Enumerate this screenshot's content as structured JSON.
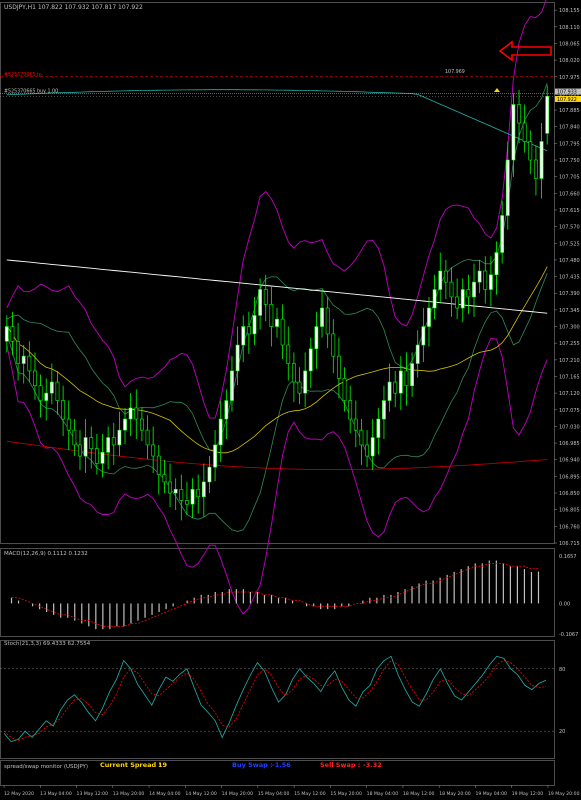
{
  "window": {
    "symbol_caption": "USDJPY,H1  107.822 107.932 107.817 107.922"
  },
  "colors": {
    "background": "#000000",
    "candle_up": "#00ff00",
    "candle_up_body": "#ffffff",
    "candle_down": "#00ff00",
    "candle_down_body": "#000000",
    "bollinger_outer": "#c000c0",
    "bollinger_inner": "#2e8b57",
    "ma_slow": "#ffffff",
    "ma_red": "#cc0000",
    "ma_yellow": "#d4c000",
    "ma_cyan": "#20b2aa",
    "macd_bars": "#c0c0c0",
    "macd_signal": "#ff0000",
    "stoch_main": "#20b2aa",
    "stoch_signal": "#ff0000",
    "arrow": "#ff0000",
    "tp_line": "#ff0000",
    "price_line": "#c0c0c0",
    "spread_label": "#ffd700",
    "buy_swap_label": "#1e40ff",
    "sell_swap_label": "#ff2020"
  },
  "main_panel": {
    "order_labels": {
      "tp": "#525370665 tp",
      "buy": "#525370665 buy 1.00"
    },
    "high_annotation": "107.969",
    "price_labels": {
      "bid": "107.922",
      "ask": "107.933"
    }
  },
  "macd_panel": {
    "caption": "MACD(12,26,9) 0.1112 0.1232"
  },
  "stoch_panel": {
    "caption": "Stoch(21,3,3) 69.4333 62.7554"
  },
  "spread_panel": {
    "caption": "spread/swap monitor (USDJPY)",
    "current_spread_label": "Current Spread :",
    "current_spread_value": "19",
    "buy_swap_label": "Buy Swap :",
    "buy_swap_value": "-1.56",
    "sell_swap_label": "Sell Swap :",
    "sell_swap_value": "-3.32"
  },
  "chart_data": [
    {
      "type": "candlestick",
      "symbol": "USDJPY",
      "timeframe": "H1",
      "ylim": [
        106.715,
        108.15
      ],
      "y_ticks": [
        "108.155",
        "108.110",
        "108.065",
        "108.020",
        "107.975",
        "107.930",
        "107.885",
        "107.840",
        "107.795",
        "107.750",
        "107.705",
        "107.660",
        "107.615",
        "107.570",
        "107.525",
        "107.480",
        "107.435",
        "107.390",
        "107.345",
        "107.300",
        "107.255",
        "107.210",
        "107.165",
        "107.120",
        "107.075",
        "107.030",
        "106.985",
        "106.940",
        "106.895",
        "106.850",
        "106.805",
        "106.760",
        "106.715"
      ],
      "x_ticks": [
        "12 May 2020",
        "13 May 04:00",
        "13 May 12:00",
        "13 May 20:00",
        "14 May 04:00",
        "14 May 12:00",
        "14 May 20:00",
        "15 May 04:00",
        "15 May 12:00",
        "15 May 20:00",
        "18 May 04:00",
        "18 May 12:00",
        "18 May 20:00",
        "19 May 04:00",
        "19 May 12:00",
        "19 May 20:00"
      ],
      "close": [
        107.3,
        107.26,
        107.2,
        107.22,
        107.18,
        107.14,
        107.1,
        107.12,
        107.15,
        107.1,
        107.05,
        107.02,
        106.98,
        106.95,
        107.0,
        106.97,
        106.93,
        106.96,
        107.0,
        106.98,
        107.02,
        107.05,
        107.08,
        107.05,
        107.02,
        106.98,
        106.95,
        106.9,
        106.88,
        106.85,
        106.86,
        106.83,
        106.82,
        106.86,
        106.84,
        106.88,
        106.92,
        106.98,
        107.05,
        107.1,
        107.18,
        107.25,
        107.3,
        107.28,
        107.33,
        107.4,
        107.36,
        107.3,
        107.32,
        107.25,
        107.2,
        107.15,
        107.12,
        107.18,
        107.24,
        107.3,
        107.35,
        107.28,
        107.22,
        107.16,
        107.1,
        107.05,
        107.02,
        106.98,
        106.95,
        107.0,
        107.05,
        107.1,
        107.15,
        107.12,
        107.18,
        107.14,
        107.2,
        107.25,
        107.3,
        107.35,
        107.4,
        107.45,
        107.42,
        107.38,
        107.35,
        107.4,
        107.38,
        107.42,
        107.45,
        107.4,
        107.44,
        107.5,
        107.6,
        107.75,
        107.9,
        107.85,
        107.8,
        107.75,
        107.7,
        107.8,
        107.922
      ],
      "open": [
        107.26,
        107.3,
        107.26,
        107.2,
        107.22,
        107.18,
        107.14,
        107.1,
        107.12,
        107.15,
        107.1,
        107.05,
        107.02,
        106.98,
        106.95,
        107.0,
        106.97,
        106.93,
        106.96,
        107.0,
        106.98,
        107.02,
        107.05,
        107.08,
        107.05,
        107.02,
        106.98,
        106.95,
        106.9,
        106.88,
        106.85,
        106.86,
        106.83,
        106.82,
        106.86,
        106.84,
        106.88,
        106.92,
        106.98,
        107.05,
        107.1,
        107.18,
        107.25,
        107.3,
        107.28,
        107.33,
        107.4,
        107.36,
        107.3,
        107.32,
        107.25,
        107.2,
        107.15,
        107.12,
        107.18,
        107.24,
        107.3,
        107.35,
        107.28,
        107.22,
        107.16,
        107.1,
        107.05,
        107.02,
        106.98,
        106.95,
        107.0,
        107.05,
        107.1,
        107.15,
        107.12,
        107.18,
        107.14,
        107.2,
        107.25,
        107.3,
        107.35,
        107.4,
        107.45,
        107.42,
        107.38,
        107.35,
        107.4,
        107.38,
        107.42,
        107.45,
        107.4,
        107.44,
        107.5,
        107.6,
        107.75,
        107.9,
        107.85,
        107.8,
        107.75,
        107.7,
        107.822
      ]
    },
    {
      "type": "bar",
      "name": "MACD(12,26,9)",
      "main_value": 0.1112,
      "signal_value": 0.1232,
      "ylim": [
        -0.1067,
        0.1657
      ],
      "y_ticks": [
        "0.1657",
        "0.00",
        "-0.1067"
      ],
      "values": [
        0.02,
        0.01,
        0.0,
        -0.01,
        -0.02,
        -0.03,
        -0.04,
        -0.05,
        -0.05,
        -0.06,
        -0.07,
        -0.08,
        -0.09,
        -0.09,
        -0.09,
        -0.08,
        -0.08,
        -0.07,
        -0.06,
        -0.05,
        -0.04,
        -0.03,
        -0.02,
        -0.01,
        0.0,
        0.01,
        0.02,
        0.03,
        0.03,
        0.04,
        0.04,
        0.05,
        0.05,
        0.05,
        0.04,
        0.04,
        0.03,
        0.03,
        0.02,
        0.02,
        0.01,
        0.0,
        -0.01,
        -0.01,
        -0.02,
        -0.02,
        -0.02,
        -0.01,
        -0.01,
        0.0,
        0.01,
        0.02,
        0.02,
        0.03,
        0.03,
        0.04,
        0.05,
        0.06,
        0.07,
        0.08,
        0.08,
        0.09,
        0.1,
        0.11,
        0.12,
        0.13,
        0.14,
        0.14,
        0.15,
        0.15,
        0.14,
        0.13,
        0.13,
        0.12,
        0.11,
        0.1112
      ],
      "signal": [
        0.02,
        0.02,
        0.01,
        0.0,
        -0.01,
        -0.02,
        -0.03,
        -0.04,
        -0.04,
        -0.05,
        -0.06,
        -0.06,
        -0.07,
        -0.08,
        -0.08,
        -0.08,
        -0.08,
        -0.07,
        -0.07,
        -0.06,
        -0.05,
        -0.04,
        -0.03,
        -0.02,
        -0.01,
        0.0,
        0.01,
        0.02,
        0.02,
        0.03,
        0.03,
        0.04,
        0.04,
        0.04,
        0.04,
        0.04,
        0.03,
        0.03,
        0.02,
        0.02,
        0.01,
        0.01,
        0.0,
        -0.01,
        -0.01,
        -0.01,
        -0.01,
        -0.01,
        -0.01,
        0.0,
        0.0,
        0.01,
        0.01,
        0.02,
        0.02,
        0.03,
        0.04,
        0.05,
        0.06,
        0.07,
        0.07,
        0.08,
        0.09,
        0.1,
        0.11,
        0.12,
        0.13,
        0.13,
        0.14,
        0.14,
        0.14,
        0.13,
        0.13,
        0.13,
        0.12,
        0.1232
      ]
    },
    {
      "type": "line",
      "name": "Stoch(21,3,3)",
      "main_value": 69.4333,
      "signal_value": 62.7554,
      "ylim": [
        0,
        100
      ],
      "y_ticks": [
        "100",
        "80",
        "20",
        "0"
      ],
      "series": [
        {
          "name": "main",
          "values": [
            18,
            10,
            12,
            20,
            14,
            22,
            30,
            25,
            40,
            50,
            55,
            48,
            38,
            30,
            42,
            58,
            70,
            88,
            80,
            65,
            55,
            45,
            60,
            72,
            68,
            75,
            80,
            62,
            45,
            38,
            30,
            14,
            28,
            45,
            60,
            74,
            86,
            78,
            62,
            48,
            55,
            70,
            80,
            72,
            66,
            58,
            70,
            78,
            62,
            50,
            44,
            58,
            64,
            80,
            88,
            92,
            74,
            60,
            48,
            44,
            56,
            70,
            80,
            66,
            54,
            50,
            58,
            66,
            74,
            84,
            92,
            90,
            80,
            74,
            64,
            60,
            66,
            69
          ]
        },
        {
          "name": "signal",
          "values": [
            20,
            14,
            11,
            14,
            16,
            18,
            24,
            27,
            32,
            42,
            50,
            52,
            46,
            38,
            36,
            44,
            56,
            72,
            80,
            76,
            66,
            56,
            54,
            60,
            66,
            72,
            76,
            70,
            58,
            46,
            38,
            26,
            24,
            32,
            46,
            60,
            74,
            80,
            74,
            62,
            54,
            60,
            70,
            74,
            70,
            64,
            64,
            70,
            68,
            60,
            52,
            52,
            58,
            68,
            80,
            88,
            84,
            72,
            60,
            50,
            50,
            58,
            68,
            70,
            62,
            56,
            54,
            60,
            66,
            74,
            84,
            88,
            86,
            80,
            72,
            64,
            62,
            62.75
          ]
        }
      ]
    }
  ]
}
